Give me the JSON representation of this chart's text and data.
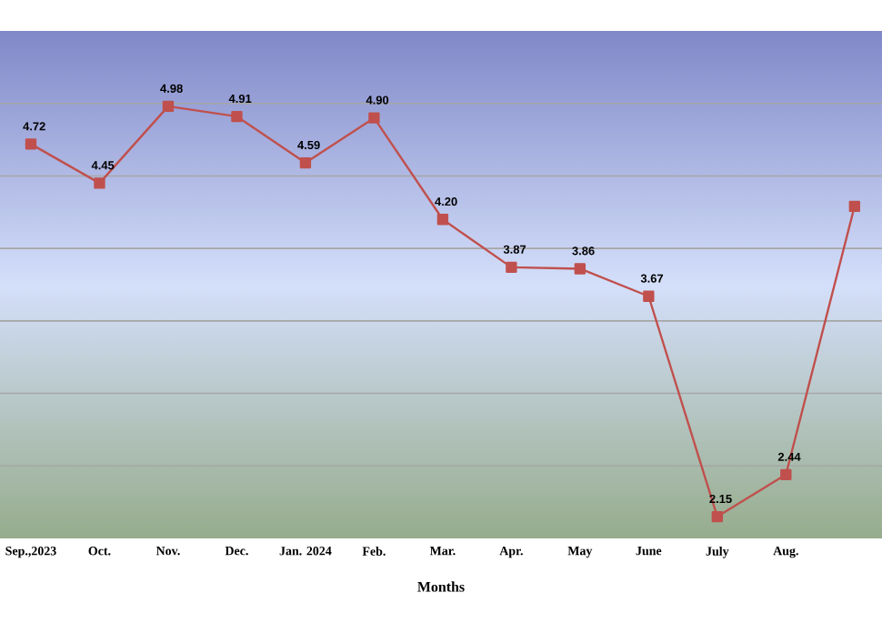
{
  "chart_data": {
    "type": "line",
    "xlabel": "Months",
    "categories": [
      "Sep.,2023",
      "Oct.",
      "Nov.",
      "Dec.",
      "Jan. 2024",
      "Feb.",
      "Mar.",
      "Apr.",
      "May",
      "June",
      "July",
      "Aug.",
      null
    ],
    "series": [
      {
        "color": "#c0504d",
        "values": [
          4.72,
          4.45,
          4.98,
          4.91,
          4.59,
          4.9,
          4.2,
          3.87,
          3.86,
          3.67,
          2.15,
          2.44,
          4.29
        ],
        "value_labels": [
          "4.72",
          "4.45",
          "4.98",
          "4.91",
          "4.59",
          "4.90",
          "4.20",
          "3.87",
          "3.86",
          "3.67",
          "2.15",
          "2.44",
          null
        ]
      }
    ],
    "ylim": [
      2.0,
      5.5
    ],
    "yticks": [
      {
        "value": 2.5,
        "label": null
      },
      {
        "value": 3.0,
        "label": null
      },
      {
        "value": 3.5,
        "label": null
      },
      {
        "value": 4.0,
        "label": null
      },
      {
        "value": 4.5,
        "label": null
      },
      {
        "value": 5.0,
        "label": null
      }
    ],
    "tick_labels": "x",
    "grid": "y",
    "marker": "square",
    "line_style": "solid"
  }
}
